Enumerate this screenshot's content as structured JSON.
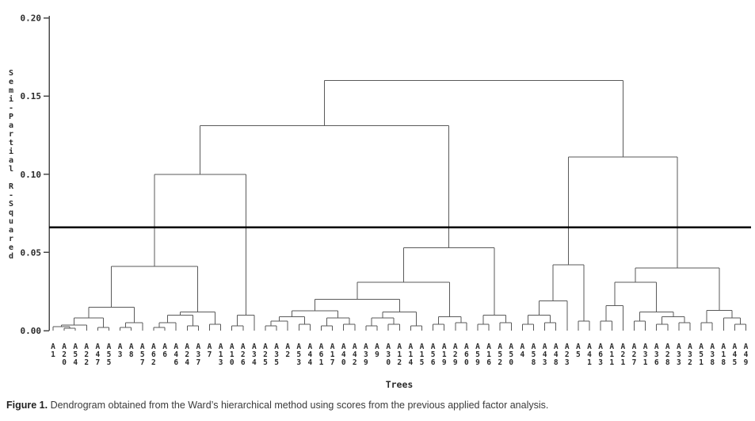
{
  "figure": {
    "y_axis": {
      "title": "Semi-Partial R-Squared",
      "ticks": [
        {
          "label": "0.20",
          "value": 0.2
        },
        {
          "label": "0.15",
          "value": 0.15
        },
        {
          "label": "0.10",
          "value": 0.1
        },
        {
          "label": "0.05",
          "value": 0.05
        },
        {
          "label": "0.00",
          "value": 0.0
        }
      ]
    },
    "x_axis": {
      "title": "Trees"
    },
    "threshold_value": 0.066,
    "colors": {
      "link_line": "#5a5a5a",
      "threshold_line": "#000000",
      "text": "#2b2b2b",
      "axis": "#4a4a4a"
    }
  },
  "chart_data": {
    "type": "dendrogram",
    "title": "",
    "xlabel": "Trees",
    "ylabel": "Semi-Partial R-Squared",
    "ylim": [
      0,
      0.2
    ],
    "grid": false,
    "threshold": 0.066,
    "leaves": [
      "A1",
      "A20",
      "A54",
      "A22",
      "A47",
      "A55",
      "A3",
      "A8",
      "A57",
      "A62",
      "A6",
      "A46",
      "A24",
      "A37",
      "A7",
      "A13",
      "A10",
      "A26",
      "A34",
      "A25",
      "A35",
      "A2",
      "A53",
      "A44",
      "A61",
      "A17",
      "A40",
      "A42",
      "A39",
      "A9",
      "A30",
      "A12",
      "A14",
      "A15",
      "A56",
      "A19",
      "A29",
      "A60",
      "A59",
      "A16",
      "A52",
      "A50",
      "A4",
      "A58",
      "A43",
      "A48",
      "A23",
      "A5",
      "A41",
      "A63",
      "A11",
      "A21",
      "A27",
      "A31",
      "A36",
      "A28",
      "A33",
      "A32",
      "A51",
      "A38",
      "A18",
      "A45",
      "A49"
    ],
    "tree": [
      0.16,
      [
        0.131,
        [
          0.1,
          [
            0.041,
            [
              0.015,
              [
                0.008,
                [
                  0.0035,
                  [
                    0.0025,
                    "A1",
                    [
                      0.0015,
                      "A20",
                      "A54"
                    ]
                  ],
                  "A22"
                ],
                [
                  0.002,
                  "A47",
                  "A55"
                ]
              ],
              [
                0.005,
                [
                  0.002,
                  "A3",
                  "A8"
                ],
                "A57"
              ]
            ],
            [
              0.012,
              [
                0.01,
                [
                  0.005,
                  [
                    0.002,
                    "A62",
                    "A6"
                  ],
                  "A46"
                ],
                [
                  0.003,
                  "A24",
                  "A37"
                ]
              ],
              [
                0.004,
                "A7",
                "A13"
              ]
            ]
          ],
          [
            0.01,
            [
              0.003,
              "A10",
              "A26"
            ],
            "A34"
          ]
        ],
        [
          0.053,
          [
            0.031,
            [
              0.02,
              [
                0.0127,
                [
                  0.009,
                  [
                    0.006,
                    [
                      0.003,
                      "A25",
                      "A35"
                    ],
                    "A2"
                  ],
                  [
                    0.004,
                    "A53",
                    "A44"
                  ]
                ],
                [
                  0.008,
                  [
                    0.003,
                    "A61",
                    "A17"
                  ],
                  [
                    0.004,
                    "A40",
                    "A42"
                  ]
                ]
              ],
              [
                0.012,
                [
                  0.008,
                  [
                    0.003,
                    "A39",
                    "A9"
                  ],
                  [
                    0.004,
                    "A30",
                    "A12"
                  ]
                ],
                [
                  0.003,
                  "A14",
                  "A15"
                ]
              ]
            ],
            [
              0.009,
              [
                0.004,
                "A56",
                "A19"
              ],
              [
                0.005,
                "A29",
                "A60"
              ]
            ]
          ],
          [
            0.01,
            [
              0.004,
              "A59",
              "A16"
            ],
            [
              0.005,
              "A52",
              "A50"
            ]
          ]
        ]
      ],
      [
        0.111,
        [
          0.042,
          [
            0.019,
            [
              0.01,
              [
                0.004,
                "A4",
                "A58"
              ],
              [
                0.005,
                "A43",
                "A48"
              ]
            ],
            "A23"
          ],
          [
            0.006,
            "A5",
            "A41"
          ]
        ],
        [
          0.04,
          [
            0.031,
            [
              0.016,
              [
                0.006,
                "A63",
                "A11"
              ],
              "A21"
            ],
            [
              0.012,
              [
                0.006,
                "A27",
                "A31"
              ],
              [
                0.009,
                [
                  0.004,
                  "A36",
                  "A28"
                ],
                [
                  0.005,
                  "A33",
                  "A32"
                ]
              ]
            ]
          ],
          [
            0.013,
            [
              0.005,
              "A51",
              "A38"
            ],
            [
              0.008,
              "A18",
              [
                0.004,
                "A45",
                "A49"
              ]
            ]
          ]
        ]
      ]
    ]
  },
  "caption": {
    "label": "Figure 1.",
    "text": " Dendrogram obtained from the Ward’s hierarchical method using scores from the previous applied factor analysis."
  }
}
